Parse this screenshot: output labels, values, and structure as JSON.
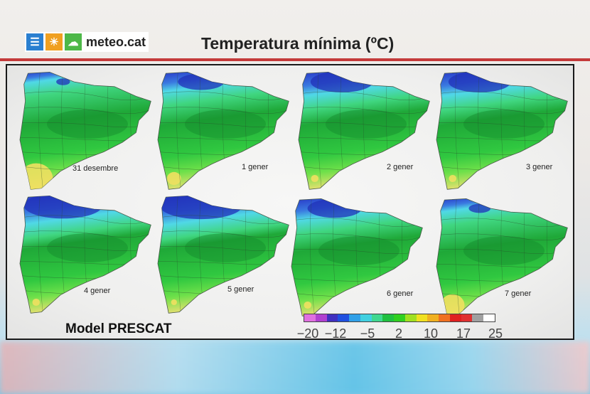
{
  "logo": {
    "text": "meteo.cat",
    "icons": [
      "menu-icon",
      "sun-icon",
      "cloud-icon"
    ]
  },
  "title": "Temperatura mínima (ºC)",
  "model_label": "Model PRESCAT",
  "maps": [
    {
      "date": "31 desembre",
      "cold": 0.1,
      "warm": 0.9
    },
    {
      "date": "1 gener",
      "cold": 0.5,
      "warm": 0.3
    },
    {
      "date": "2 gener",
      "cold": 0.7,
      "warm": 0.1
    },
    {
      "date": "3 gener",
      "cold": 0.7,
      "warm": 0.1
    },
    {
      "date": "4 gener",
      "cold": 0.9,
      "warm": 0.1
    },
    {
      "date": "5 gener",
      "cold": 0.95,
      "warm": 0.05
    },
    {
      "date": "6 gener",
      "cold": 0.6,
      "warm": 0.1
    },
    {
      "date": "7 gener",
      "cold": 0.2,
      "warm": 0.6
    }
  ],
  "scale": {
    "labels": [
      "−20",
      "−12",
      "−5",
      "2",
      "10",
      "17",
      "25"
    ],
    "colors": [
      "#e070e0",
      "#b040d0",
      "#4030c0",
      "#2050e0",
      "#30a0e8",
      "#40d0e0",
      "#40d890",
      "#20c040",
      "#30d020",
      "#a0e020",
      "#f0e020",
      "#f0b020",
      "#f07020",
      "#e02020",
      "#e03030",
      "#a0a0a0",
      "#ffffff"
    ]
  },
  "colors": {
    "accent_red": "#c43a3a",
    "logo_blue": "#2a7fd0",
    "logo_orange": "#f0a020",
    "logo_green": "#4db848"
  }
}
